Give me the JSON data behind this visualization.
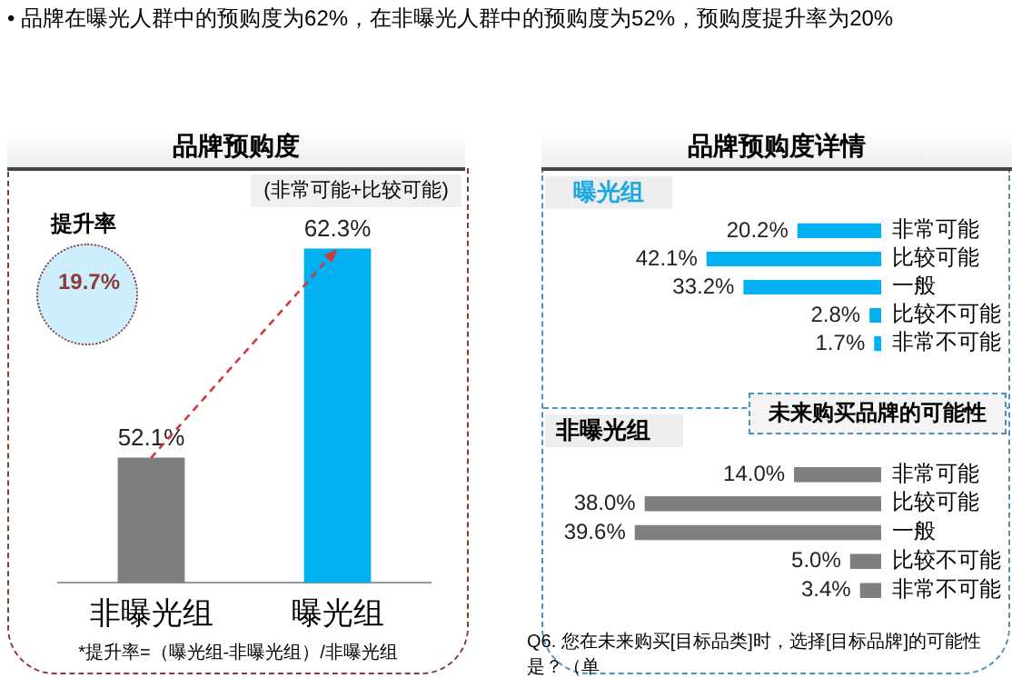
{
  "chart_data": [
    {
      "type": "bar",
      "title": "品牌预购度",
      "subtitle": "(非常可能+比较可能)",
      "categories": [
        "非曝光组",
        "曝光组"
      ],
      "values": [
        52.1,
        62.3
      ],
      "colors": [
        "#7f7f7f",
        "#00b0f0"
      ],
      "value_labels": [
        "52.1%",
        "62.3%"
      ],
      "ylim": [
        46,
        66
      ],
      "tick_labels": "x",
      "annotations": [
        "• 品牌在曝光人群中的预购度为62%，在非曝光人群中的预购度为52%，预购度提升率为20%",
        "提升率",
        "19.7%",
        "*提升率=（曝光组-非曝光组）/非曝光组"
      ]
    },
    {
      "type": "bar",
      "orientation": "horizontal",
      "title": "品牌预购度详情",
      "subtitle": "曝光组",
      "categories": [
        "非常可能",
        "比较可能",
        "一般",
        "比较不可能",
        "非常不可能"
      ],
      "values": [
        20.2,
        42.1,
        33.2,
        2.8,
        1.7
      ],
      "color": "#00b0f0",
      "value_labels": [
        "20.2%",
        "42.1%",
        "33.2%",
        "2.8%",
        "1.7%"
      ],
      "tick_labels": "y"
    },
    {
      "type": "bar",
      "orientation": "horizontal",
      "title": "非曝光组",
      "categories": [
        "非常可能",
        "比较可能",
        "一般",
        "比较不可能",
        "非常不可能"
      ],
      "values": [
        14.0,
        38.0,
        39.6,
        5.0,
        3.4
      ],
      "color": "#7f7f7f",
      "value_labels": [
        "14.0%",
        "38.0%",
        "39.6%",
        "5.0%",
        "3.4%"
      ],
      "tick_labels": "y",
      "annotations": [
        "未来购买品牌的可能性",
        "Q6. 您在未来购买[目标品类]时，选择[目标品牌]的可能性是？（单"
      ]
    }
  ]
}
